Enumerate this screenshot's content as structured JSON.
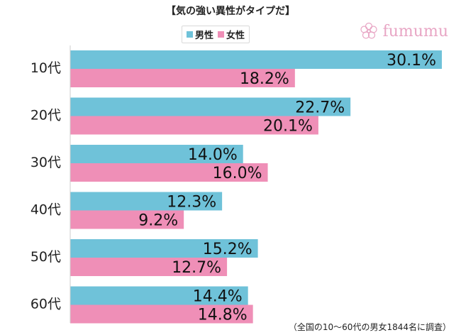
{
  "title": "【気の強い異性がタイプだ】",
  "brand": {
    "name": "fumumu",
    "icon": "flower-icon"
  },
  "legend": [
    {
      "label": "男性",
      "color": "#6fc2d9"
    },
    {
      "label": "女性",
      "color": "#ef8fb7"
    }
  ],
  "note": "（全国の10～60代の男女1844名に調査）",
  "chart_data": {
    "type": "bar",
    "orientation": "horizontal",
    "title": "気の強い異性がタイプだ",
    "categories": [
      "10代",
      "20代",
      "30代",
      "40代",
      "50代",
      "60代"
    ],
    "series": [
      {
        "name": "男性",
        "color": "#6fc2d9",
        "values": [
          30.1,
          22.7,
          14.0,
          12.3,
          15.2,
          14.4
        ],
        "labels": [
          "30.1%",
          "22.7%",
          "14.0%",
          "12.3%",
          "15.2%",
          "14.4%"
        ]
      },
      {
        "name": "女性",
        "color": "#ef8fb7",
        "values": [
          18.2,
          20.1,
          16.0,
          9.2,
          12.7,
          14.8
        ],
        "labels": [
          "18.2%",
          "20.1%",
          "16.0%",
          "9.2%",
          "12.7%",
          "14.8%"
        ]
      }
    ],
    "xlim": [
      0,
      30.1
    ],
    "unit": "%",
    "legend_position": "top-center",
    "grid": false
  }
}
